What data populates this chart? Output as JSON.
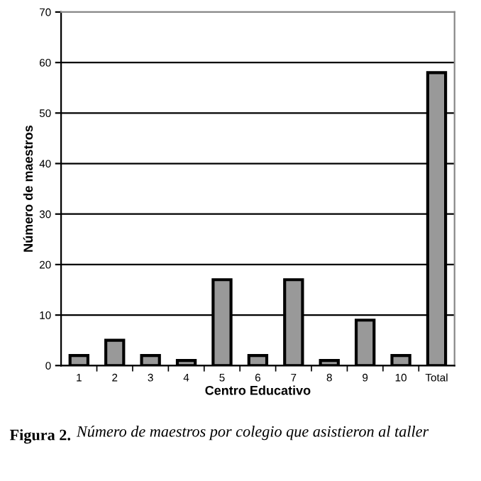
{
  "chart_data": {
    "type": "bar",
    "xlabel": "Centro Educativo",
    "ylabel": "Número de maestros",
    "categories": [
      "1",
      "2",
      "3",
      "4",
      "5",
      "6",
      "7",
      "8",
      "9",
      "10",
      "Total"
    ],
    "values": [
      2,
      5,
      2,
      1,
      17,
      2,
      17,
      1,
      9,
      2,
      58
    ],
    "color": "#999999",
    "ylim": [
      0,
      70
    ],
    "yticks": [
      0,
      10,
      20,
      30,
      40,
      50,
      60,
      70
    ],
    "grid": "y",
    "annotations": [
      "Figura 2.",
      "Número de maestros por colegio que asistieron al taller"
    ]
  }
}
